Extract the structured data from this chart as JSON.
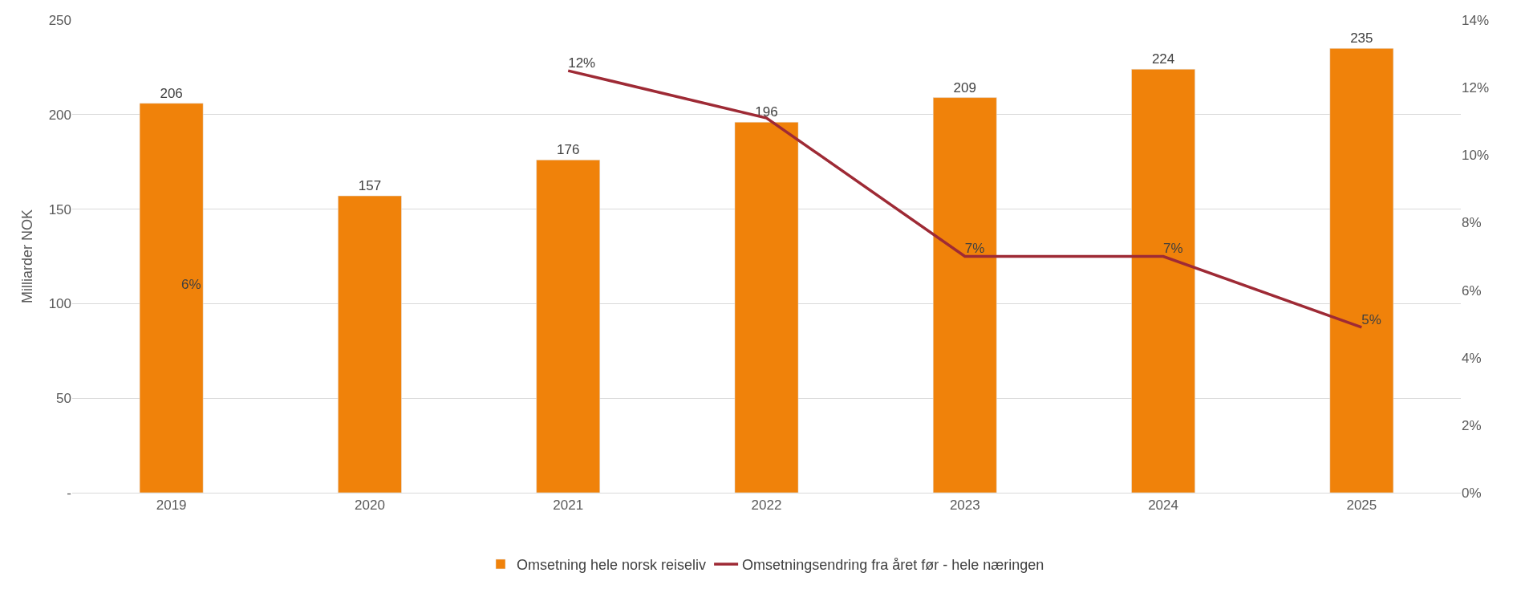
{
  "chart_data": {
    "type": "bar",
    "categories": [
      "2019",
      "2020",
      "2021",
      "2022",
      "2023",
      "2024",
      "2025"
    ],
    "series": [
      {
        "name": "Omsetning hele norsk reiseliv",
        "color": "#f0820a",
        "values": [
          206,
          157,
          176,
          196,
          209,
          224,
          235
        ],
        "data_labels": true
      },
      {
        "name": "Omsetningsendring fra året før - hele næringen",
        "type": "line",
        "axis": "y2",
        "color": "#9e2a35",
        "values": [
          null,
          null,
          12.5,
          11.1,
          7.0,
          7.0,
          4.9
        ],
        "value_labels": [
          null,
          null,
          "12%",
          null,
          "7%",
          "7%",
          "5%"
        ]
      }
    ],
    "ylabel": "Milliarder NOK",
    "ylim": [
      0,
      250
    ],
    "yticks": [
      {
        "value": 0,
        "label": "-"
      },
      50,
      100,
      150,
      200,
      250
    ],
    "y2lim": [
      0,
      14
    ],
    "y2ticks": [
      {
        "value": 0,
        "label": "0%"
      },
      {
        "value": 2,
        "label": "2%"
      },
      {
        "value": 4,
        "label": "4%"
      },
      {
        "value": 6,
        "label": "6%"
      },
      {
        "value": 8,
        "label": "8%"
      },
      {
        "value": 10,
        "label": "10%"
      },
      {
        "value": 12,
        "label": "12%"
      },
      {
        "value": 14,
        "label": "14%"
      }
    ],
    "annotations": [
      "6%"
    ],
    "grid": "y",
    "legend": "bottom",
    "marker": "none"
  }
}
